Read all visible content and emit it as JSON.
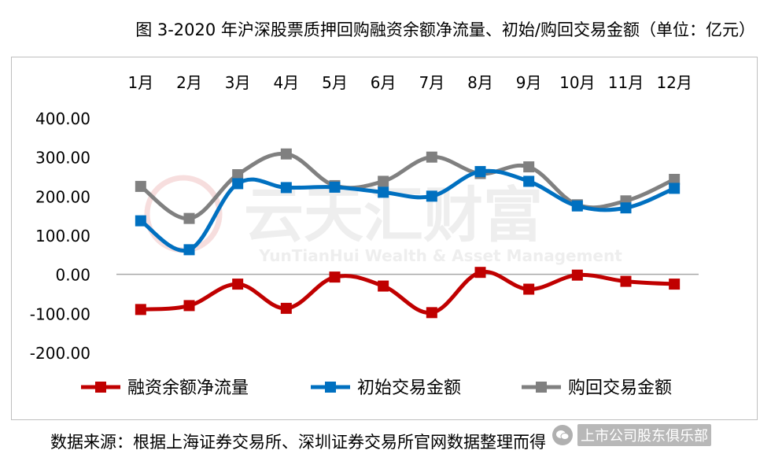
{
  "title": "图 3-2020 年沪深股票质押回购融资余额净流量、初始/购回交易金额（单位：亿元）",
  "source": "数据来源：根据上海证券交易所、深圳证券交易所官网数据整理而得",
  "watermark": {
    "cn": "云天汇财富",
    "en": "YunTianHui Wealth & Asset Management",
    "wechat": "上市公司股东俱乐部"
  },
  "chart_data": {
    "type": "line",
    "title": "",
    "xlabel": "",
    "ylabel": "",
    "categories": [
      "1月",
      "2月",
      "3月",
      "4月",
      "5月",
      "6月",
      "7月",
      "8月",
      "9月",
      "10月",
      "11月",
      "12月"
    ],
    "ylim": [
      -200,
      400
    ],
    "yticks": [
      400,
      300,
      200,
      100,
      0,
      -100,
      -200
    ],
    "ytick_labels": [
      "400.00",
      "300.00",
      "200.00",
      "100.00",
      "0.00",
      "-100.00",
      "-200.00"
    ],
    "grid": false,
    "legend_position": "bottom",
    "smooth": true,
    "series": [
      {
        "name": "融资余额净流量",
        "color": "#c00000",
        "values": [
          -90,
          -80,
          -25,
          -87,
          -7,
          -30,
          -98,
          5,
          -38,
          -2,
          -18,
          -25
        ]
      },
      {
        "name": "初始交易金额",
        "color": "#0070c0",
        "values": [
          137,
          63,
          232,
          222,
          223,
          210,
          200,
          263,
          238,
          175,
          170,
          220
        ]
      },
      {
        "name": "购回交易金额",
        "color": "#808080",
        "values": [
          225,
          143,
          255,
          308,
          227,
          238,
          300,
          258,
          275,
          178,
          188,
          243
        ]
      }
    ]
  }
}
